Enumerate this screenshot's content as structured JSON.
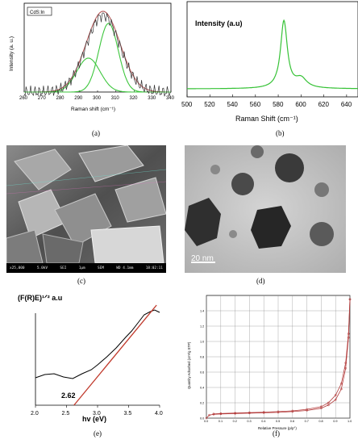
{
  "panels": {
    "a": "(a)",
    "b": "(b)",
    "c": "(c)",
    "d": "(d)",
    "e": "(e)",
    "f": "(f)"
  },
  "chart_data": [
    {
      "id": "a",
      "type": "line",
      "legend": "CdS:In",
      "xlabel": "Raman shift (cm⁻¹)",
      "ylabel": "Intensity (a. u.)",
      "xlim": [
        260,
        340
      ],
      "xticks": [
        "260",
        "270",
        "280",
        "290",
        "300",
        "310",
        "320",
        "330",
        "340"
      ],
      "series": [
        {
          "kind": "fit-total",
          "color": "#b55a5a",
          "center": 303,
          "width": 13,
          "amplitude": 1.0
        },
        {
          "kind": "component",
          "color": "#3cc63c",
          "center": 306,
          "width": 7.5,
          "amplitude": 0.85
        },
        {
          "kind": "component",
          "color": "#3cc63c",
          "center": 295,
          "width": 9,
          "amplitude": 0.42
        },
        {
          "kind": "measured",
          "color": "#333333",
          "note": "noisy experimental spectrum"
        }
      ]
    },
    {
      "id": "b",
      "type": "line",
      "xlabel": "Raman Shift (cm⁻¹)",
      "ylabel": "Intensity (a.u)",
      "xlim": [
        500,
        650
      ],
      "xticks": [
        "500",
        "520",
        "540",
        "560",
        "580",
        "600",
        "620",
        "640"
      ],
      "series": [
        {
          "color": "#36c236",
          "peak": 585,
          "shoulder": 600
        }
      ]
    },
    {
      "id": "e",
      "type": "line",
      "ylabel": "(F(R)E)¹ᐟ² a.u",
      "xlabel": "hv (eV)",
      "xlim": [
        2.0,
        4.0
      ],
      "xticks": [
        "2.0",
        "2.5",
        "3.0",
        "3.5",
        "4.0"
      ],
      "annotation": "2.62",
      "intercept": 2.62
    },
    {
      "id": "f",
      "type": "line",
      "xlabel": "Relative Pressure (p/p°)",
      "ylabel": "Quantity Adsorbed (cm³/g STP)",
      "xlim": [
        0.0,
        1.0
      ],
      "ylim": [
        0.0,
        1.6
      ],
      "xticks": [
        "0.0",
        "0.1",
        "0.2",
        "0.3",
        "0.4",
        "0.5",
        "0.6",
        "0.7",
        "0.8",
        "0.9",
        "1.0"
      ],
      "yticks": [
        "0.0",
        "0.2",
        "0.4",
        "0.6",
        "0.8",
        "1.0",
        "1.2",
        "1.4"
      ],
      "series": [
        {
          "name": "adsorption",
          "color": "#b33a3a",
          "x": [
            0.0,
            0.02,
            0.05,
            0.1,
            0.2,
            0.3,
            0.4,
            0.5,
            0.6,
            0.7,
            0.8,
            0.85,
            0.9,
            0.94,
            0.97,
            0.99,
            1.0
          ],
          "y": [
            0.0,
            0.04,
            0.05,
            0.055,
            0.06,
            0.065,
            0.07,
            0.075,
            0.085,
            0.1,
            0.13,
            0.17,
            0.24,
            0.38,
            0.65,
            1.05,
            1.55
          ]
        },
        {
          "name": "desorption",
          "color": "#b33a3a",
          "x": [
            1.0,
            0.99,
            0.97,
            0.94,
            0.9,
            0.85,
            0.8,
            0.7,
            0.6,
            0.5,
            0.4,
            0.3,
            0.2,
            0.1,
            0.05
          ],
          "y": [
            1.55,
            1.1,
            0.72,
            0.45,
            0.3,
            0.2,
            0.15,
            0.115,
            0.095,
            0.085,
            0.078,
            0.072,
            0.066,
            0.06,
            0.055
          ]
        }
      ]
    }
  ],
  "micrographs": {
    "c": {
      "scale_text": "1µm",
      "footer": [
        "x25,000",
        "5.0kV",
        "SEI",
        "SEM",
        "WD 4.1mm",
        "18:02:11"
      ]
    },
    "d": {
      "scale_text": "20 nm"
    }
  }
}
